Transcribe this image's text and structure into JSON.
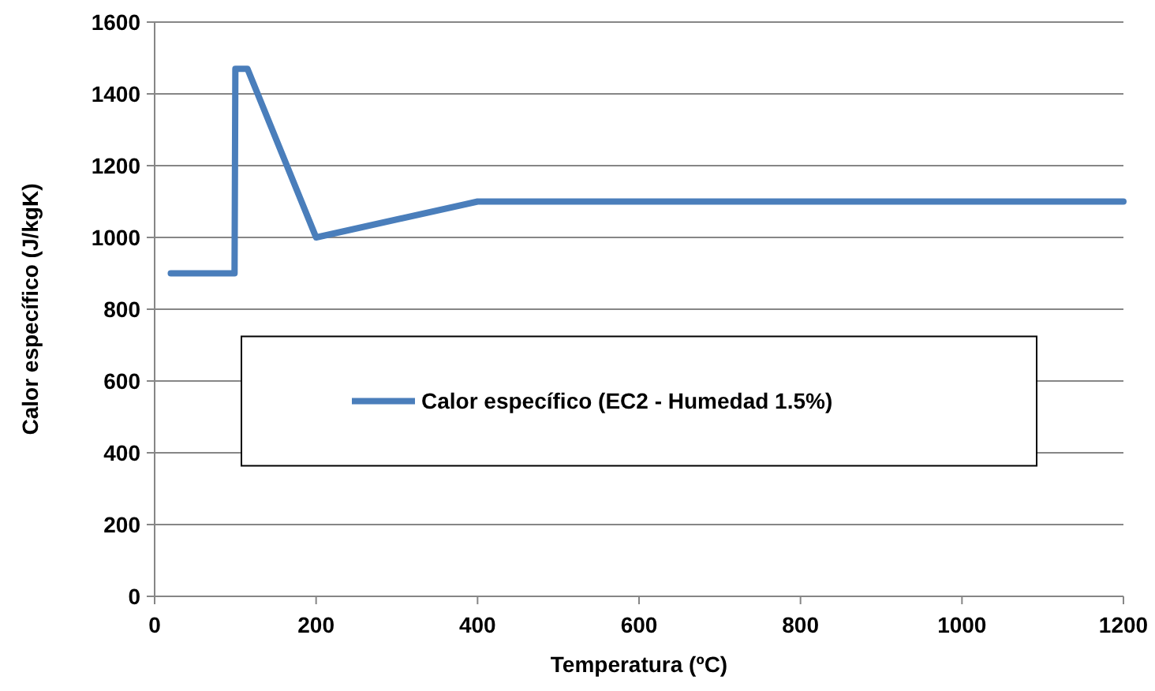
{
  "chart_data": {
    "type": "line",
    "xlabel": "Temperatura (ºC)",
    "ylabel": "Calor específico  (J/kgK)",
    "x": [
      20,
      99,
      100,
      115,
      200,
      400,
      1200
    ],
    "series": [
      {
        "name": "Calor específico (EC2 - Humedad 1.5%)",
        "color": "#4a7ebb",
        "values": [
          900,
          900,
          1470,
          1470,
          1000,
          1100,
          1100
        ]
      }
    ],
    "xlim": [
      0,
      1200
    ],
    "xticks": [
      0,
      200,
      400,
      600,
      800,
      1000,
      1200
    ],
    "ylim": [
      0,
      1600
    ],
    "yticks": [
      0,
      200,
      400,
      600,
      800,
      1000,
      1200,
      1400,
      1600
    ],
    "grid": "y",
    "legend": "center",
    "line_style": "solid"
  }
}
